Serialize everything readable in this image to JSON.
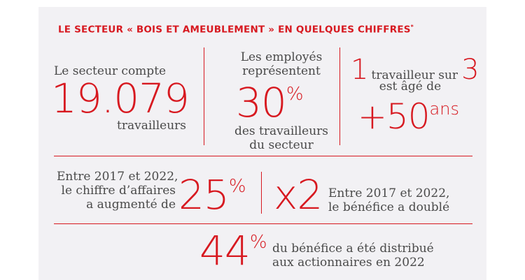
{
  "title": "LE SECTEUR « BOIS ET AMEUBLEMENT » EN QUELQUES CHIFFRES",
  "title_mark": "*",
  "stat1": {
    "pre": "Le secteur compte",
    "value": "19.079",
    "post": "travailleurs"
  },
  "stat2": {
    "pre1": "Les employés",
    "pre2": "représentent",
    "value": "30",
    "unit": "%",
    "post1": "des travailleurs",
    "post2": "du secteur"
  },
  "stat3": {
    "num1": "1",
    "mid": "travailleur sur",
    "num2": "3",
    "line2": "est âgé de",
    "value": "+50",
    "unit": "ans"
  },
  "stat4": {
    "line1": "Entre 2017 et 2022,",
    "line2": "le chiffre d’affaires",
    "line3": "a augmenté de",
    "value": "25",
    "unit": "%"
  },
  "stat5": {
    "value": "x2",
    "line1": "Entre 2017 et 2022,",
    "line2": "le bénéfice a doublé"
  },
  "stat6": {
    "value": "44",
    "unit": "%",
    "line1": "du bénéfice a été distribué",
    "line2": "aux actionnaires en 2022"
  },
  "colors": {
    "accent": "#d71920",
    "panel": "#f2f1f4",
    "text": "#4a4a4a"
  }
}
